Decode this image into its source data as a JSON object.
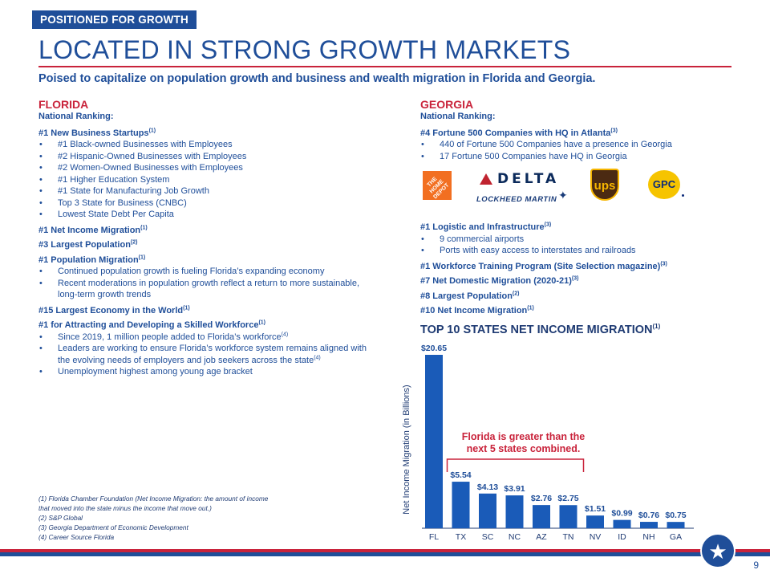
{
  "header": {
    "tag": "POSITIONED FOR GROWTH",
    "title": "LOCATED IN STRONG GROWTH MARKETS",
    "subtitle": "Poised to capitalize on population growth and business and wealth migration in Florida and Georgia."
  },
  "florida": {
    "name": "FLORIDA",
    "national_ranking": "National Ranking:",
    "sections": [
      {
        "rank": "#1 New Business Startups",
        "note": "(1)",
        "bullets": [
          {
            "text": "#1 Black-owned Businesses with Employees"
          },
          {
            "text": "#2 Hispanic-Owned Businesses with Employees"
          },
          {
            "text": "#2 Women-Owned Businesses with Employees"
          },
          {
            "text": "#1 Higher Education System"
          },
          {
            "text": "#1 State for Manufacturing Job Growth"
          },
          {
            "text": "Top 3 State for Business (CNBC)"
          },
          {
            "text": "Lowest State Debt Per Capita"
          }
        ]
      },
      {
        "rank": "#1 Net Income Migration",
        "note": "(1)",
        "bullets": []
      },
      {
        "rank": "#3 Largest Population",
        "note": "(2)",
        "bullets": []
      },
      {
        "rank": "#1 Population Migration",
        "note": "(1)",
        "bullets": [
          {
            "text": "Continued population growth is fueling Florida’s expanding economy"
          },
          {
            "text": "Recent moderations in population growth reflect a return to more sustainable, long-term growth trends"
          }
        ]
      },
      {
        "rank": "#15 Largest Economy in the World",
        "note": "(1)",
        "bullets": []
      },
      {
        "rank": "#1 for Attracting and Developing a Skilled Workforce",
        "note": "(1)",
        "bullets": [
          {
            "text": "Since 2019, 1 million people added to Florida’s workforce",
            "note": "(4)"
          },
          {
            "text": "Leaders are working to ensure Florida’s workforce system remains aligned with the evolving needs of employers and job seekers across the state",
            "note": "(4)"
          },
          {
            "text": "Unemployment highest among young age bracket"
          }
        ]
      }
    ]
  },
  "georgia": {
    "name": "GEORGIA",
    "national_ranking": "National Ranking:",
    "top_section": {
      "rank": "#4 Fortune 500 Companies with HQ in Atlanta",
      "note": "(3)",
      "bullets": [
        {
          "text": "440 of Fortune 500 Companies have a presence in Georgia"
        },
        {
          "text": "17 Fortune 500 Companies have HQ in Georgia"
        }
      ]
    },
    "logos": {
      "home_depot": "THE HOME DEPOT",
      "delta": "DELTA",
      "lockheed": "LOCKHEED MARTIN",
      "ups": "ups",
      "gpc": "GPC"
    },
    "sections": [
      {
        "rank": "#1 Logistic and Infrastructure",
        "note": "(3)",
        "bullets": [
          {
            "text": "9 commercial airports"
          },
          {
            "text": "Ports with easy access to interstates and railroads"
          }
        ]
      },
      {
        "rank": "#1 Workforce Training Program (Site Selection magazine)",
        "note": "(3)",
        "bullets": []
      },
      {
        "rank": "#7 Net Domestic Migration (2020-21)",
        "note": "(3)",
        "bullets": []
      },
      {
        "rank": "#8 Largest Population",
        "note": "(2)",
        "bullets": []
      },
      {
        "rank": "#10 Net Income Migration",
        "note": "(1)",
        "bullets": []
      }
    ]
  },
  "footnotes": [
    "(1) Florida Chamber Foundation (Net Income Migration: the amount of income that moved into the state minus the income that move out.)",
    "(2) S&P Global",
    "(3) Georgia Department of Economic Development",
    "(4) Career Source Florida"
  ],
  "page_number": "9",
  "colors": {
    "navy": "#1f4e99",
    "red": "#c9233b",
    "bar": "#1a5bb8"
  },
  "chart_data": {
    "type": "bar",
    "title": "TOP 10 STATES NET INCOME MIGRATION",
    "title_note": "(1)",
    "ylabel": "Net Income Migration (in Billions)",
    "xlabel": "",
    "categories": [
      "FL",
      "TX",
      "SC",
      "NC",
      "AZ",
      "TN",
      "NV",
      "ID",
      "NH",
      "GA"
    ],
    "values": [
      20.65,
      5.54,
      4.13,
      3.91,
      2.76,
      2.75,
      1.51,
      0.99,
      0.76,
      0.75
    ],
    "data_labels": [
      "$20.65",
      "$5.54",
      "$4.13",
      "$3.91",
      "$2.76",
      "$2.75",
      "$1.51",
      "$0.99",
      "$0.76",
      "$0.75"
    ],
    "ylim": [
      0,
      20.65
    ],
    "grid": false,
    "legend": "none",
    "annotation": "Florida is greater than the next 5 states combined.",
    "annotation_span": [
      "TX",
      "TN"
    ]
  }
}
